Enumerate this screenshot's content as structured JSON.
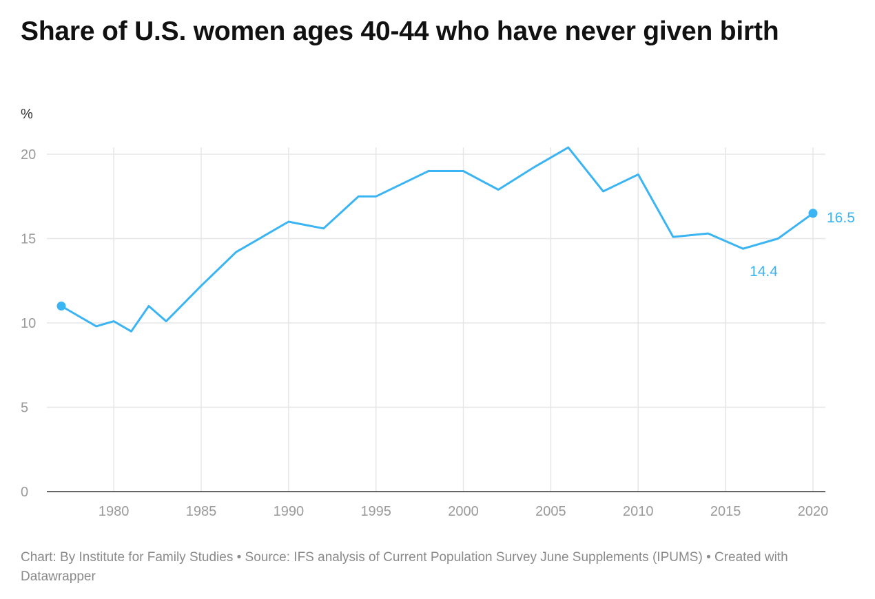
{
  "title": "Share of U.S. women ages 40-44 who have never given birth",
  "footer": "Chart: By Institute for Family Studies • Source: IFS analysis of Current Population Survey June Supplements (IPUMS) • Created with Datawrapper",
  "colors": {
    "line": "#3ab4f2",
    "grid": "#e6e6e6",
    "axis": "#333333",
    "tick_text": "#9a9a9a"
  },
  "chart_data": {
    "type": "line",
    "title": "Share of U.S. women ages 40-44 who have never given birth",
    "ylabel": "%",
    "xlabel": "",
    "xlim": [
      1977,
      2020
    ],
    "ylim": [
      0,
      20
    ],
    "x_ticks": [
      1980,
      1985,
      1990,
      1995,
      2000,
      2005,
      2010,
      2015,
      2020
    ],
    "y_ticks": [
      0,
      5,
      10,
      15,
      20
    ],
    "grid": true,
    "series": [
      {
        "color": "#3ab4f2",
        "x": [
          1977,
          1979,
          1980,
          1981,
          1982,
          1983,
          1985,
          1987,
          1988,
          1990,
          1992,
          1994,
          1995,
          1998,
          2000,
          2002,
          2004,
          2006,
          2008,
          2010,
          2012,
          2014,
          2016,
          2018,
          2020
        ],
        "y": [
          11.0,
          9.8,
          10.1,
          9.5,
          11.0,
          10.1,
          12.2,
          14.2,
          14.8,
          16.0,
          15.6,
          17.5,
          17.5,
          19.0,
          19.0,
          17.9,
          19.2,
          20.4,
          17.8,
          18.8,
          15.1,
          15.3,
          14.4,
          15.0,
          16.5
        ]
      }
    ],
    "annotations": [
      {
        "x": 2016,
        "y": 14.4,
        "text": "14.4"
      },
      {
        "x": 2020,
        "y": 16.5,
        "text": "16.5"
      }
    ],
    "markers": [
      {
        "x": 1977,
        "y": 11.0
      },
      {
        "x": 2020,
        "y": 16.5
      }
    ]
  }
}
